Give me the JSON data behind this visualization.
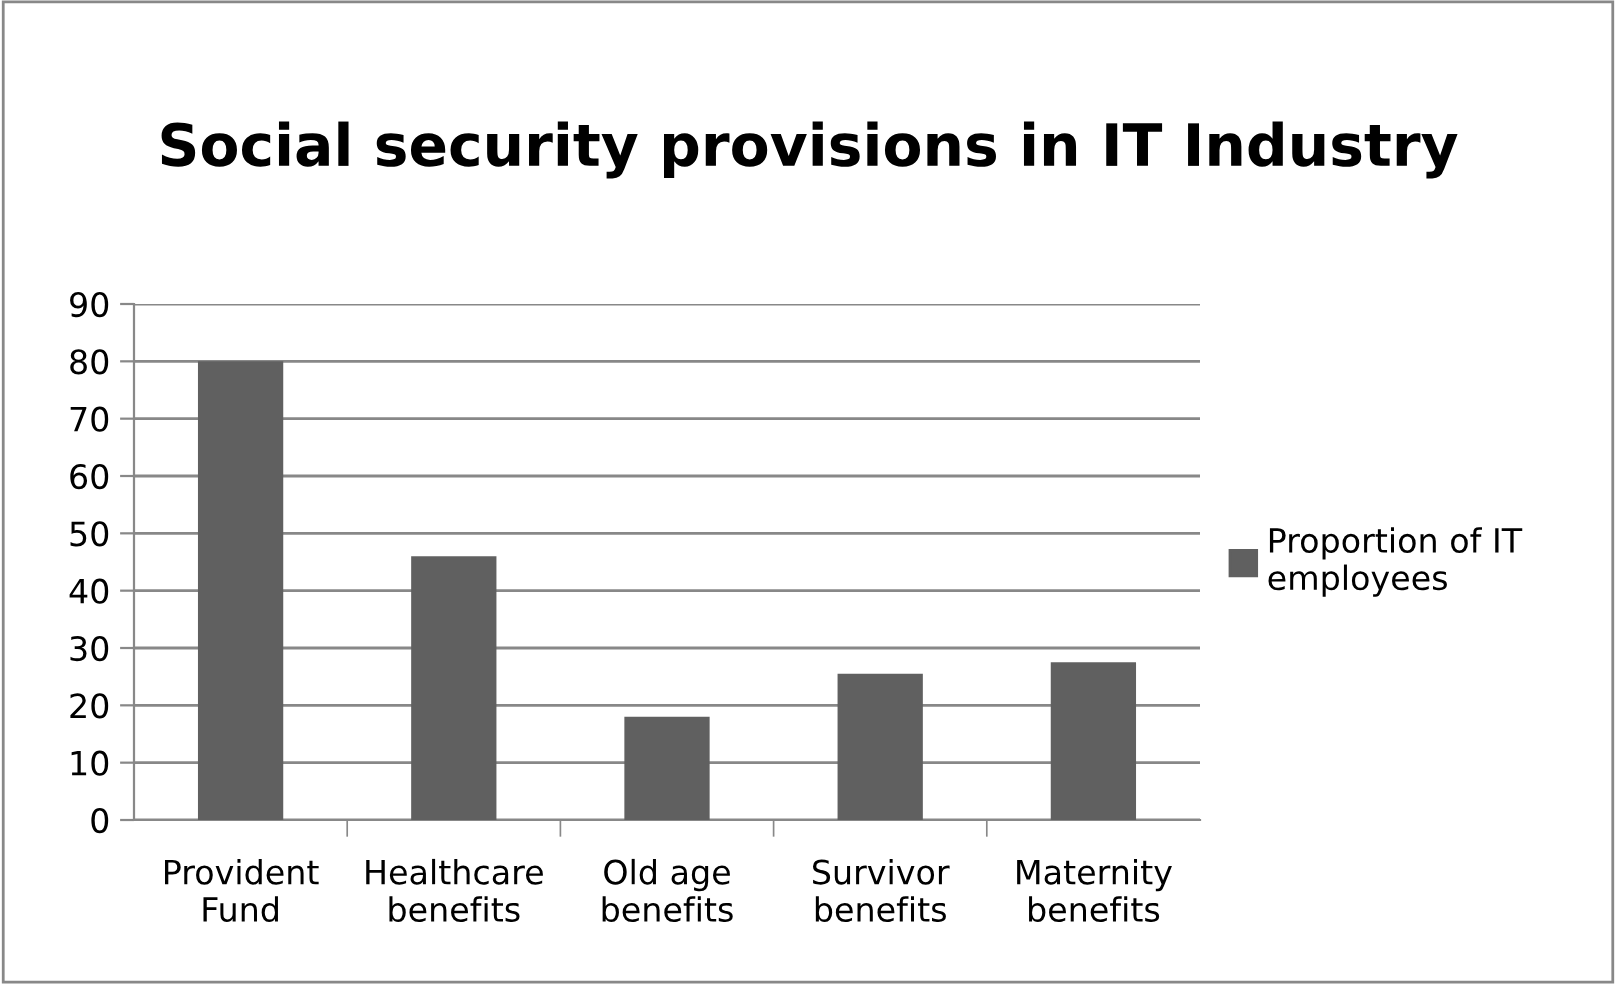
{
  "chart_data": {
    "type": "bar",
    "title": "Social security provisions in IT Industry",
    "categories": [
      "Provident\nFund",
      "Healthcare\nbenefits",
      "Old age\nbenefits",
      "Survivor\nbenefits",
      "Maternity\nbenefits"
    ],
    "series": [
      {
        "name": "Proportion of IT\nemployees",
        "color": "#606060",
        "values": [
          80,
          46,
          18,
          25.5,
          27.5
        ]
      }
    ],
    "ylim": [
      0,
      90
    ],
    "yticks": [
      0,
      10,
      20,
      30,
      40,
      50,
      60,
      70,
      80,
      90
    ],
    "grid": "y",
    "legend": "right"
  }
}
